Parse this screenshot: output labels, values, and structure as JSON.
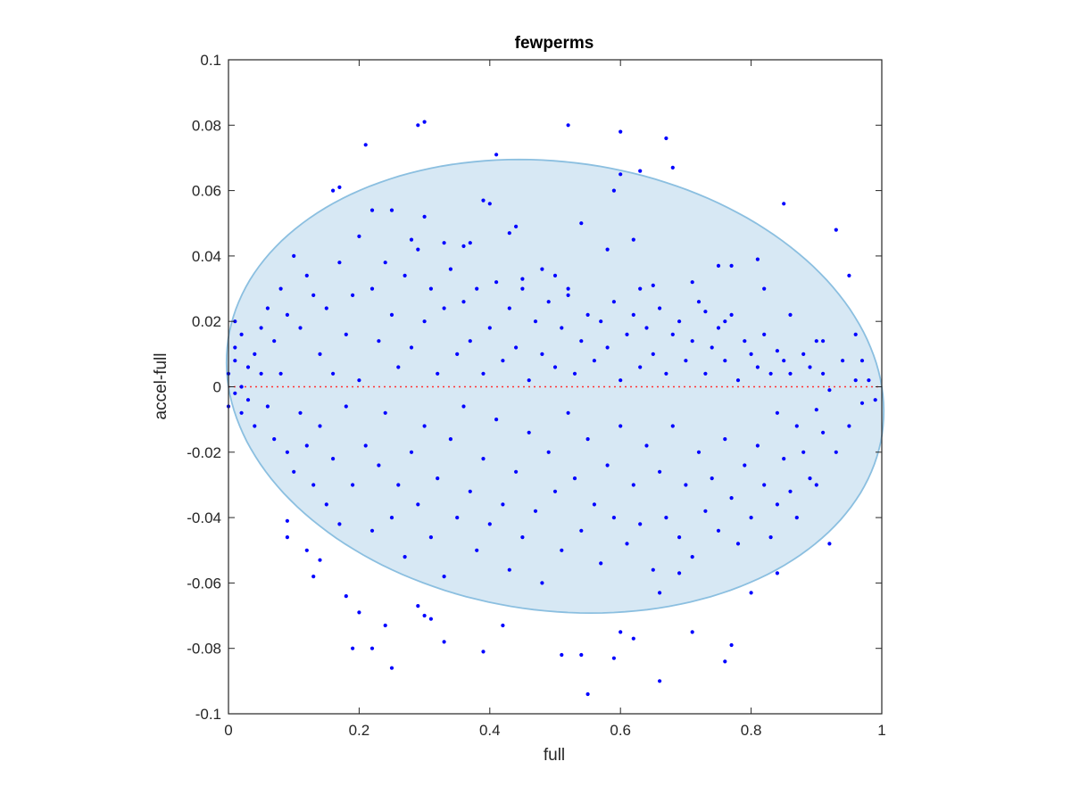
{
  "chart_data": {
    "type": "scatter",
    "title": "fewperms",
    "xlabel": "full",
    "ylabel": "accel-full",
    "xlim": [
      0,
      1
    ],
    "ylim": [
      -0.1,
      0.1
    ],
    "xticks": [
      "0",
      "0.2",
      "0.4",
      "0.6",
      "0.8",
      "1"
    ],
    "yticks": [
      "0.1",
      "0.08",
      "0.06",
      "0.04",
      "0.02",
      "0",
      "-0.02",
      "-0.04",
      "-0.06",
      "-0.08",
      "-0.1"
    ],
    "grid": false,
    "legend": "none",
    "colors": {
      "points": "#0000ff",
      "ellipse_fill": "#d7e8f4",
      "ellipse_stroke": "#8bbfe0",
      "reference_line": "#ff3333",
      "axes": "#262626"
    },
    "ellipse": {
      "center": [
        0.5,
        0.0
      ],
      "radii": [
        0.5,
        0.069
      ],
      "min_x": 0.0,
      "max_y": 0.0695,
      "min_y": -0.0692
    },
    "reference_line": {
      "y": 0,
      "x_range": [
        0,
        1
      ],
      "style": "dotted"
    },
    "series": [
      {
        "points": [
          [
            0.29,
            0.08
          ],
          [
            0.3,
            0.081
          ],
          [
            0.41,
            0.071
          ],
          [
            0.52,
            0.08
          ],
          [
            0.6,
            0.078
          ],
          [
            0.67,
            0.076
          ],
          [
            0.21,
            0.074
          ],
          [
            0.63,
            0.066
          ],
          [
            0.68,
            0.067
          ],
          [
            0.16,
            0.06
          ],
          [
            0.17,
            0.061
          ],
          [
            0.85,
            0.056
          ],
          [
            0.93,
            0.048
          ],
          [
            0.95,
            0.034
          ],
          [
            0.39,
            0.057
          ],
          [
            0.4,
            0.056
          ],
          [
            0.22,
            0.054
          ],
          [
            0.25,
            0.054
          ],
          [
            0.6,
            0.065
          ],
          [
            0.59,
            0.06
          ],
          [
            0.54,
            0.05
          ],
          [
            0.43,
            0.047
          ],
          [
            0.44,
            0.049
          ],
          [
            0.3,
            0.052
          ],
          [
            0.28,
            0.045
          ],
          [
            0.33,
            0.044
          ],
          [
            0.36,
            0.043
          ],
          [
            0.37,
            0.044
          ],
          [
            0.62,
            0.045
          ],
          [
            0.75,
            0.037
          ],
          [
            0.77,
            0.037
          ],
          [
            0.81,
            0.039
          ],
          [
            0.82,
            0.03
          ],
          [
            0.71,
            0.032
          ],
          [
            0.63,
            0.03
          ],
          [
            0.65,
            0.031
          ],
          [
            0.58,
            0.042
          ],
          [
            0.5,
            0.034
          ],
          [
            0.52,
            0.03
          ],
          [
            0.48,
            0.036
          ],
          [
            0.45,
            0.033
          ],
          [
            0.73,
            0.023
          ],
          [
            0.76,
            0.02
          ],
          [
            0.84,
            0.011
          ],
          [
            0.86,
            0.022
          ],
          [
            0.91,
            0.014
          ],
          [
            0.96,
            0.016
          ],
          [
            0.97,
            0.008
          ],
          [
            0.98,
            0.002
          ],
          [
            0.99,
            -0.004
          ],
          [
            0.97,
            -0.005
          ],
          [
            0.92,
            -0.001
          ],
          [
            0.9,
            -0.007
          ],
          [
            0.55,
            -0.094
          ],
          [
            0.66,
            -0.09
          ],
          [
            0.76,
            -0.084
          ],
          [
            0.77,
            -0.079
          ],
          [
            0.59,
            -0.083
          ],
          [
            0.51,
            -0.082
          ],
          [
            0.54,
            -0.082
          ],
          [
            0.42,
            -0.073
          ],
          [
            0.39,
            -0.081
          ],
          [
            0.33,
            -0.078
          ],
          [
            0.25,
            -0.086
          ],
          [
            0.22,
            -0.08
          ],
          [
            0.19,
            -0.08
          ],
          [
            0.29,
            -0.067
          ],
          [
            0.3,
            -0.07
          ],
          [
            0.31,
            -0.071
          ],
          [
            0.24,
            -0.073
          ],
          [
            0.2,
            -0.069
          ],
          [
            0.18,
            -0.064
          ],
          [
            0.14,
            -0.053
          ],
          [
            0.13,
            -0.058
          ],
          [
            0.09,
            -0.046
          ],
          [
            0.09,
            -0.041
          ],
          [
            0.12,
            -0.05
          ],
          [
            0.71,
            -0.075
          ],
          [
            0.8,
            -0.063
          ],
          [
            0.84,
            -0.057
          ],
          [
            0.92,
            -0.048
          ],
          [
            0.62,
            -0.077
          ],
          [
            0.6,
            -0.075
          ],
          [
            0.66,
            -0.063
          ],
          [
            0.69,
            -0.057
          ],
          [
            0.01,
            0.02
          ],
          [
            0.02,
            0.016
          ],
          [
            0.01,
            0.008
          ],
          [
            0.0,
            0.004
          ],
          [
            0.01,
            -0.002
          ],
          [
            0.0,
            -0.006
          ],
          [
            0.02,
            -0.008
          ],
          [
            0.01,
            0.012
          ],
          [
            0.03,
            0.006
          ],
          [
            0.02,
            0.0
          ],
          [
            0.03,
            -0.004
          ],
          [
            0.04,
            0.01
          ],
          [
            0.04,
            -0.012
          ],
          [
            0.05,
            0.018
          ],
          [
            0.05,
            0.004
          ],
          [
            0.06,
            -0.006
          ],
          [
            0.06,
            0.024
          ],
          [
            0.07,
            0.014
          ],
          [
            0.07,
            -0.016
          ],
          [
            0.08,
            0.004
          ],
          [
            0.08,
            0.03
          ],
          [
            0.09,
            -0.02
          ],
          [
            0.09,
            0.022
          ],
          [
            0.1,
            0.04
          ],
          [
            0.1,
            -0.026
          ],
          [
            0.11,
            0.018
          ],
          [
            0.11,
            -0.008
          ],
          [
            0.12,
            0.034
          ],
          [
            0.12,
            -0.018
          ],
          [
            0.13,
            0.028
          ],
          [
            0.13,
            -0.03
          ],
          [
            0.14,
            0.01
          ],
          [
            0.14,
            -0.012
          ],
          [
            0.15,
            0.024
          ],
          [
            0.15,
            -0.036
          ],
          [
            0.16,
            0.004
          ],
          [
            0.16,
            -0.022
          ],
          [
            0.17,
            0.038
          ],
          [
            0.17,
            -0.042
          ],
          [
            0.18,
            0.016
          ],
          [
            0.18,
            -0.006
          ],
          [
            0.19,
            0.028
          ],
          [
            0.19,
            -0.03
          ],
          [
            0.2,
            0.046
          ],
          [
            0.2,
            0.002
          ],
          [
            0.21,
            -0.018
          ],
          [
            0.22,
            0.03
          ],
          [
            0.22,
            -0.044
          ],
          [
            0.23,
            0.014
          ],
          [
            0.23,
            -0.024
          ],
          [
            0.24,
            0.038
          ],
          [
            0.24,
            -0.008
          ],
          [
            0.25,
            0.022
          ],
          [
            0.25,
            -0.04
          ],
          [
            0.26,
            0.006
          ],
          [
            0.26,
            -0.03
          ],
          [
            0.27,
            0.034
          ],
          [
            0.27,
            -0.052
          ],
          [
            0.28,
            0.012
          ],
          [
            0.28,
            -0.02
          ],
          [
            0.29,
            0.042
          ],
          [
            0.29,
            -0.036
          ],
          [
            0.3,
            0.02
          ],
          [
            0.3,
            -0.012
          ],
          [
            0.31,
            0.03
          ],
          [
            0.31,
            -0.046
          ],
          [
            0.32,
            0.004
          ],
          [
            0.32,
            -0.028
          ],
          [
            0.33,
            0.024
          ],
          [
            0.33,
            -0.058
          ],
          [
            0.34,
            0.036
          ],
          [
            0.34,
            -0.016
          ],
          [
            0.35,
            0.01
          ],
          [
            0.35,
            -0.04
          ],
          [
            0.36,
            0.026
          ],
          [
            0.36,
            -0.006
          ],
          [
            0.37,
            0.014
          ],
          [
            0.37,
            -0.032
          ],
          [
            0.38,
            0.03
          ],
          [
            0.38,
            -0.05
          ],
          [
            0.39,
            0.004
          ],
          [
            0.39,
            -0.022
          ],
          [
            0.4,
            0.018
          ],
          [
            0.4,
            -0.042
          ],
          [
            0.41,
            0.032
          ],
          [
            0.41,
            -0.01
          ],
          [
            0.42,
            0.008
          ],
          [
            0.42,
            -0.036
          ],
          [
            0.43,
            0.024
          ],
          [
            0.43,
            -0.056
          ],
          [
            0.44,
            0.012
          ],
          [
            0.44,
            -0.026
          ],
          [
            0.45,
            0.03
          ],
          [
            0.45,
            -0.046
          ],
          [
            0.46,
            0.002
          ],
          [
            0.46,
            -0.014
          ],
          [
            0.47,
            0.02
          ],
          [
            0.47,
            -0.038
          ],
          [
            0.48,
            0.01
          ],
          [
            0.48,
            -0.06
          ],
          [
            0.49,
            0.026
          ],
          [
            0.49,
            -0.02
          ],
          [
            0.5,
            0.006
          ],
          [
            0.5,
            -0.032
          ],
          [
            0.51,
            0.018
          ],
          [
            0.51,
            -0.05
          ],
          [
            0.52,
            0.028
          ],
          [
            0.52,
            -0.008
          ],
          [
            0.53,
            0.004
          ],
          [
            0.53,
            -0.028
          ],
          [
            0.54,
            0.014
          ],
          [
            0.54,
            -0.044
          ],
          [
            0.55,
            0.022
          ],
          [
            0.55,
            -0.016
          ],
          [
            0.56,
            0.008
          ],
          [
            0.56,
            -0.036
          ],
          [
            0.57,
            0.02
          ],
          [
            0.57,
            -0.054
          ],
          [
            0.58,
            0.012
          ],
          [
            0.58,
            -0.024
          ],
          [
            0.59,
            0.026
          ],
          [
            0.59,
            -0.04
          ],
          [
            0.6,
            0.002
          ],
          [
            0.6,
            -0.012
          ],
          [
            0.61,
            0.016
          ],
          [
            0.61,
            -0.048
          ],
          [
            0.62,
            0.022
          ],
          [
            0.62,
            -0.03
          ],
          [
            0.63,
            0.006
          ],
          [
            0.63,
            -0.042
          ],
          [
            0.64,
            0.018
          ],
          [
            0.64,
            -0.018
          ],
          [
            0.65,
            0.01
          ],
          [
            0.65,
            -0.056
          ],
          [
            0.66,
            0.024
          ],
          [
            0.66,
            -0.026
          ],
          [
            0.67,
            0.004
          ],
          [
            0.67,
            -0.04
          ],
          [
            0.68,
            0.016
          ],
          [
            0.68,
            -0.012
          ],
          [
            0.69,
            0.02
          ],
          [
            0.69,
            -0.046
          ],
          [
            0.7,
            0.008
          ],
          [
            0.7,
            -0.03
          ],
          [
            0.71,
            0.014
          ],
          [
            0.71,
            -0.052
          ],
          [
            0.72,
            0.026
          ],
          [
            0.72,
            -0.02
          ],
          [
            0.73,
            0.004
          ],
          [
            0.73,
            -0.038
          ],
          [
            0.74,
            0.012
          ],
          [
            0.74,
            -0.028
          ],
          [
            0.75,
            0.018
          ],
          [
            0.75,
            -0.044
          ],
          [
            0.76,
            0.008
          ],
          [
            0.76,
            -0.016
          ],
          [
            0.77,
            0.022
          ],
          [
            0.77,
            -0.034
          ],
          [
            0.78,
            0.002
          ],
          [
            0.78,
            -0.048
          ],
          [
            0.79,
            0.014
          ],
          [
            0.79,
            -0.024
          ],
          [
            0.8,
            0.01
          ],
          [
            0.8,
            -0.04
          ],
          [
            0.81,
            0.006
          ],
          [
            0.81,
            -0.018
          ],
          [
            0.82,
            0.016
          ],
          [
            0.82,
            -0.03
          ],
          [
            0.83,
            0.004
          ],
          [
            0.83,
            -0.046
          ],
          [
            0.84,
            -0.008
          ],
          [
            0.84,
            -0.036
          ],
          [
            0.85,
            0.008
          ],
          [
            0.85,
            -0.022
          ],
          [
            0.86,
            0.004
          ],
          [
            0.86,
            -0.032
          ],
          [
            0.87,
            -0.012
          ],
          [
            0.87,
            -0.04
          ],
          [
            0.88,
            0.01
          ],
          [
            0.88,
            -0.02
          ],
          [
            0.89,
            0.006
          ],
          [
            0.89,
            -0.028
          ],
          [
            0.9,
            0.014
          ],
          [
            0.9,
            -0.03
          ],
          [
            0.91,
            -0.014
          ],
          [
            0.91,
            0.004
          ],
          [
            0.93,
            -0.02
          ],
          [
            0.94,
            0.008
          ],
          [
            0.95,
            -0.012
          ],
          [
            0.96,
            0.002
          ]
        ]
      }
    ]
  }
}
